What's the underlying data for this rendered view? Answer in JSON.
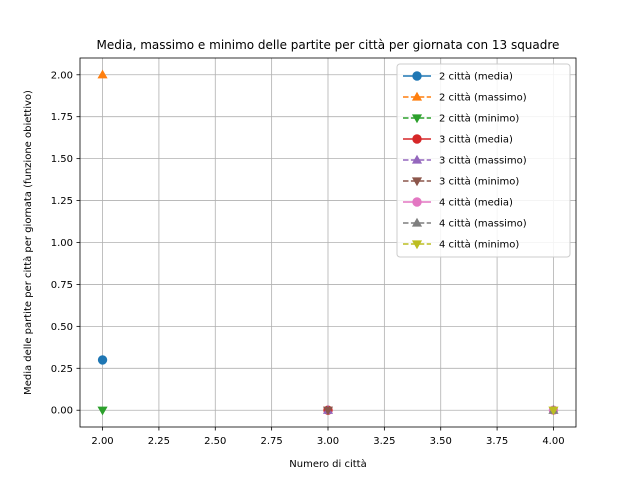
{
  "chart_data": {
    "type": "line",
    "title": "Media, massimo e minimo delle partite per città per giornata con 13 squadre",
    "xlabel": "Numero di città",
    "ylabel": "Media delle partite per città per giornata (funzione obiettivo)",
    "xlim": [
      1.9,
      4.1
    ],
    "ylim": [
      -0.1,
      2.1
    ],
    "x_ticks": [
      2.0,
      2.25,
      2.5,
      2.75,
      3.0,
      3.25,
      3.5,
      3.75,
      4.0
    ],
    "x_tick_labels": [
      "2.00",
      "2.25",
      "2.50",
      "2.75",
      "3.00",
      "3.25",
      "3.50",
      "3.75",
      "4.00"
    ],
    "y_ticks": [
      0.0,
      0.25,
      0.5,
      0.75,
      1.0,
      1.25,
      1.5,
      1.75,
      2.0
    ],
    "y_tick_labels": [
      "0.00",
      "0.25",
      "0.50",
      "0.75",
      "1.00",
      "1.25",
      "1.50",
      "1.75",
      "2.00"
    ],
    "grid": true,
    "legend_position": "top-right",
    "series": [
      {
        "name": "2 città (media)",
        "x": [
          2
        ],
        "y": [
          0.3
        ],
        "color": "#1f77b4",
        "marker": "circle",
        "linestyle": "solid"
      },
      {
        "name": "2 città (massimo)",
        "x": [
          2
        ],
        "y": [
          2.0
        ],
        "color": "#ff7f0e",
        "marker": "triangle-up",
        "linestyle": "dashed"
      },
      {
        "name": "2 città (minimo)",
        "x": [
          2
        ],
        "y": [
          0.0
        ],
        "color": "#2ca02c",
        "marker": "triangle-down",
        "linestyle": "dashed"
      },
      {
        "name": "3 città (media)",
        "x": [
          3
        ],
        "y": [
          0.0
        ],
        "color": "#d62728",
        "marker": "circle",
        "linestyle": "solid"
      },
      {
        "name": "3 città (massimo)",
        "x": [
          3
        ],
        "y": [
          0.0
        ],
        "color": "#9467bd",
        "marker": "triangle-up",
        "linestyle": "dashed"
      },
      {
        "name": "3 città (minimo)",
        "x": [
          3
        ],
        "y": [
          0.0
        ],
        "color": "#8c564b",
        "marker": "triangle-down",
        "linestyle": "dashed"
      },
      {
        "name": "4 città (media)",
        "x": [
          4
        ],
        "y": [
          0.0
        ],
        "color": "#e377c2",
        "marker": "circle",
        "linestyle": "solid"
      },
      {
        "name": "4 città (massimo)",
        "x": [
          4
        ],
        "y": [
          0.0
        ],
        "color": "#7f7f7f",
        "marker": "triangle-up",
        "linestyle": "dashed"
      },
      {
        "name": "4 città (minimo)",
        "x": [
          4
        ],
        "y": [
          0.0
        ],
        "color": "#bcbd22",
        "marker": "triangle-down",
        "linestyle": "dashed"
      }
    ]
  }
}
